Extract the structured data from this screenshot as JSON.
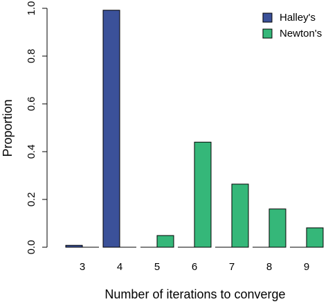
{
  "chart_data": {
    "type": "bar",
    "xlabel": "Number of iterations to converge",
    "ylabel": "Proportion",
    "categories": [
      "3",
      "4",
      "5",
      "6",
      "7",
      "8",
      "9"
    ],
    "series": [
      {
        "name": "Halley's",
        "color": "#3b5199",
        "values": [
          0.008,
          0.992,
          0,
          0,
          0,
          0,
          0
        ]
      },
      {
        "name": "Newton's",
        "color": "#35b779",
        "values": [
          0,
          0,
          0.049,
          0.44,
          0.264,
          0.16,
          0.081
        ]
      }
    ],
    "ylim": [
      0,
      1
    ],
    "yticks": [
      {
        "value": 0,
        "label": "0.0"
      },
      0.2,
      0.4,
      0.6,
      0.8,
      {
        "value": 1,
        "label": "1.0"
      }
    ],
    "legend": "top-right"
  }
}
